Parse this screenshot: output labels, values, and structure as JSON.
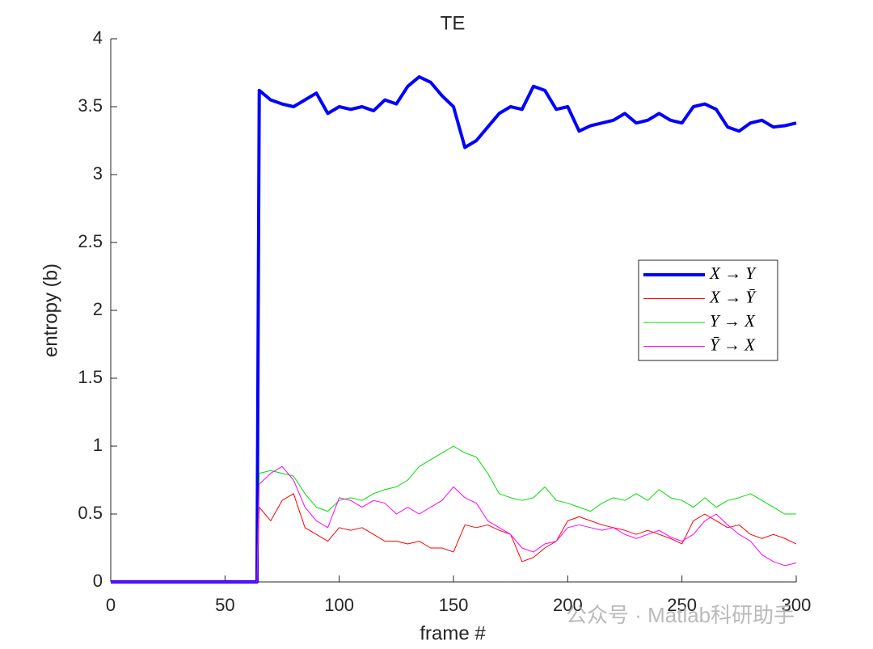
{
  "chart_data": {
    "type": "line",
    "title": "TE",
    "xlabel": "frame #",
    "ylabel": "entropy (b)",
    "x": [
      0,
      5,
      10,
      15,
      20,
      25,
      30,
      35,
      40,
      45,
      50,
      55,
      60,
      64,
      65,
      70,
      75,
      80,
      85,
      90,
      95,
      100,
      105,
      110,
      115,
      120,
      125,
      130,
      135,
      140,
      145,
      150,
      155,
      160,
      165,
      170,
      175,
      180,
      185,
      190,
      195,
      200,
      205,
      210,
      215,
      220,
      225,
      230,
      235,
      240,
      245,
      250,
      255,
      260,
      265,
      270,
      275,
      280,
      285,
      290,
      295,
      300
    ],
    "series": [
      {
        "name": "X → Y",
        "color": "#0000ff",
        "linewidth": 4,
        "values": [
          0,
          0,
          0,
          0,
          0,
          0,
          0,
          0,
          0,
          0,
          0,
          0,
          0,
          0,
          3.62,
          3.55,
          3.52,
          3.5,
          3.55,
          3.6,
          3.45,
          3.5,
          3.48,
          3.5,
          3.47,
          3.55,
          3.52,
          3.65,
          3.72,
          3.68,
          3.58,
          3.5,
          3.2,
          3.25,
          3.35,
          3.45,
          3.5,
          3.48,
          3.65,
          3.62,
          3.48,
          3.5,
          3.32,
          3.36,
          3.38,
          3.4,
          3.45,
          3.38,
          3.4,
          3.45,
          3.4,
          3.38,
          3.5,
          3.52,
          3.48,
          3.35,
          3.32,
          3.38,
          3.4,
          3.35,
          3.36,
          3.38
        ]
      },
      {
        "name": "X → Ȳ",
        "color": "#ff0000",
        "linewidth": 1,
        "values": [
          0,
          0,
          0,
          0,
          0,
          0,
          0,
          0,
          0,
          0,
          0,
          0,
          0,
          0,
          0.55,
          0.45,
          0.6,
          0.65,
          0.4,
          0.35,
          0.3,
          0.4,
          0.38,
          0.4,
          0.35,
          0.3,
          0.3,
          0.28,
          0.3,
          0.25,
          0.25,
          0.22,
          0.42,
          0.4,
          0.42,
          0.38,
          0.35,
          0.15,
          0.18,
          0.25,
          0.3,
          0.45,
          0.48,
          0.45,
          0.42,
          0.4,
          0.38,
          0.35,
          0.38,
          0.35,
          0.32,
          0.28,
          0.45,
          0.5,
          0.45,
          0.4,
          0.42,
          0.35,
          0.32,
          0.35,
          0.32,
          0.28
        ]
      },
      {
        "name": "Y → X",
        "color": "#00dd00",
        "linewidth": 1,
        "values": [
          0,
          0,
          0,
          0,
          0,
          0,
          0,
          0,
          0,
          0,
          0,
          0,
          0,
          0,
          0.8,
          0.82,
          0.8,
          0.78,
          0.65,
          0.55,
          0.52,
          0.6,
          0.62,
          0.6,
          0.65,
          0.68,
          0.7,
          0.75,
          0.85,
          0.9,
          0.95,
          1.0,
          0.95,
          0.92,
          0.8,
          0.65,
          0.62,
          0.6,
          0.62,
          0.7,
          0.6,
          0.58,
          0.55,
          0.52,
          0.58,
          0.62,
          0.6,
          0.65,
          0.6,
          0.68,
          0.62,
          0.6,
          0.55,
          0.62,
          0.55,
          0.6,
          0.62,
          0.65,
          0.6,
          0.55,
          0.5,
          0.5
        ]
      },
      {
        "name": "Ȳ → X",
        "color": "#ff00ff",
        "linewidth": 1,
        "values": [
          0,
          0,
          0,
          0,
          0,
          0,
          0,
          0,
          0,
          0,
          0,
          0,
          0,
          0,
          0.72,
          0.8,
          0.85,
          0.75,
          0.55,
          0.45,
          0.4,
          0.62,
          0.6,
          0.55,
          0.6,
          0.58,
          0.5,
          0.55,
          0.5,
          0.55,
          0.6,
          0.7,
          0.62,
          0.58,
          0.45,
          0.4,
          0.35,
          0.25,
          0.22,
          0.28,
          0.3,
          0.4,
          0.42,
          0.4,
          0.38,
          0.4,
          0.35,
          0.32,
          0.35,
          0.38,
          0.33,
          0.3,
          0.35,
          0.45,
          0.5,
          0.42,
          0.35,
          0.3,
          0.2,
          0.15,
          0.12,
          0.14
        ]
      }
    ],
    "xlim": [
      0,
      300
    ],
    "xticks": [
      0,
      50,
      100,
      150,
      200,
      250,
      300
    ],
    "ylim": [
      0,
      4
    ],
    "yticks": [
      0,
      0.5,
      1,
      1.5,
      2,
      2.5,
      3,
      3.5,
      4
    ],
    "legend": "right",
    "watermark": "公众号 · Matlab科研助手"
  }
}
